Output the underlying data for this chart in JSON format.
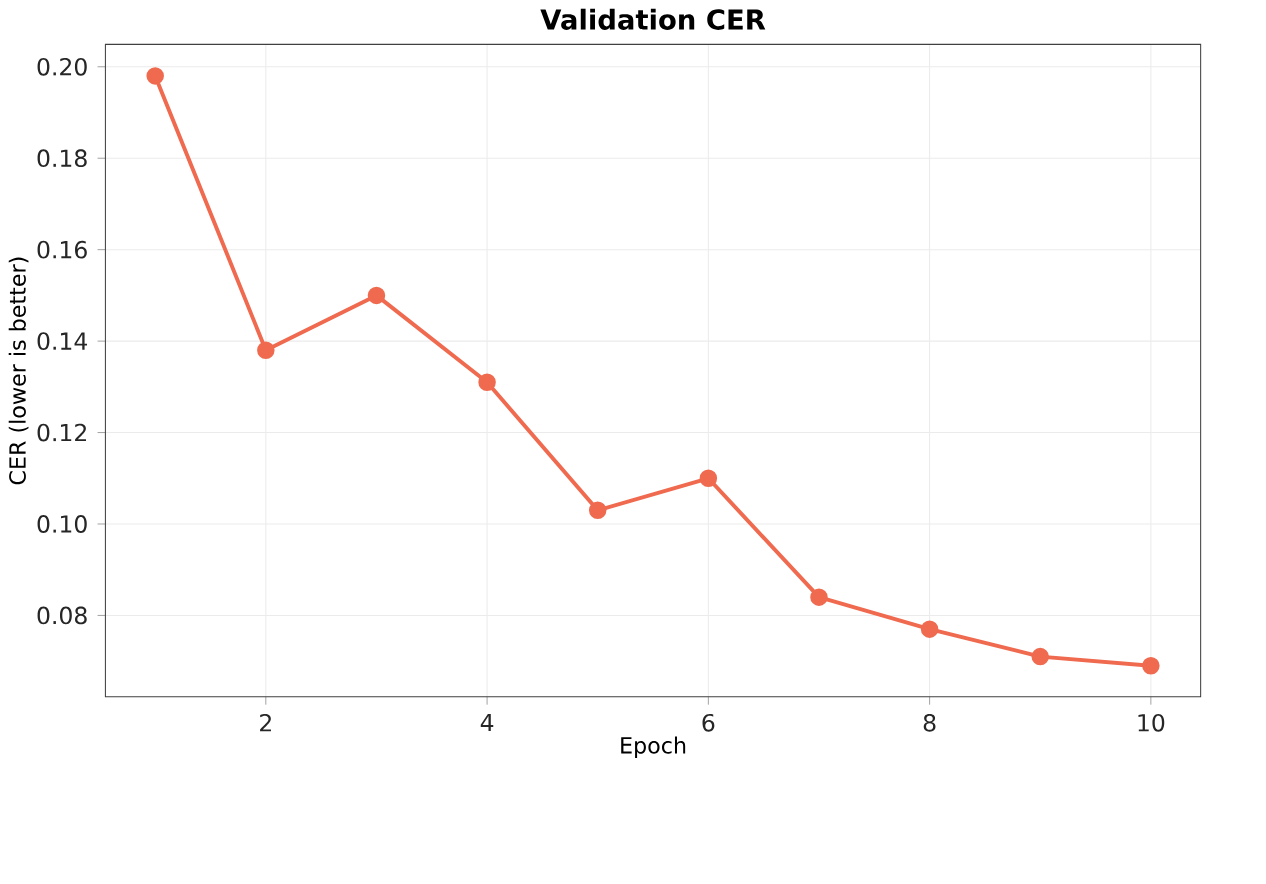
{
  "chart_data": {
    "type": "line",
    "title": "Validation CER",
    "xlabel": "Epoch",
    "ylabel": "CER (lower is better)",
    "x": [
      1,
      2,
      3,
      4,
      5,
      6,
      7,
      8,
      9,
      10
    ],
    "series": [
      {
        "color": "#ef6a4f",
        "values": [
          0.198,
          0.138,
          0.15,
          0.131,
          0.103,
          0.11,
          0.084,
          0.077,
          0.071,
          0.069
        ]
      }
    ],
    "xlim": [
      0.55,
      10.45
    ],
    "ylim": [
      0.0622,
      0.2049
    ],
    "xticks": [
      2,
      4,
      6,
      8,
      10
    ],
    "yticks": [
      {
        "value": 0.08,
        "label": "0.08"
      },
      {
        "value": 0.1,
        "label": "0.10"
      },
      {
        "value": 0.12,
        "label": "0.12"
      },
      {
        "value": 0.14,
        "label": "0.14"
      },
      {
        "value": 0.16,
        "label": "0.16"
      },
      {
        "value": 0.18,
        "label": "0.18"
      },
      {
        "value": 0.2,
        "label": "0.20"
      }
    ],
    "grid": true,
    "marker": "circle",
    "line_style": "solid"
  }
}
